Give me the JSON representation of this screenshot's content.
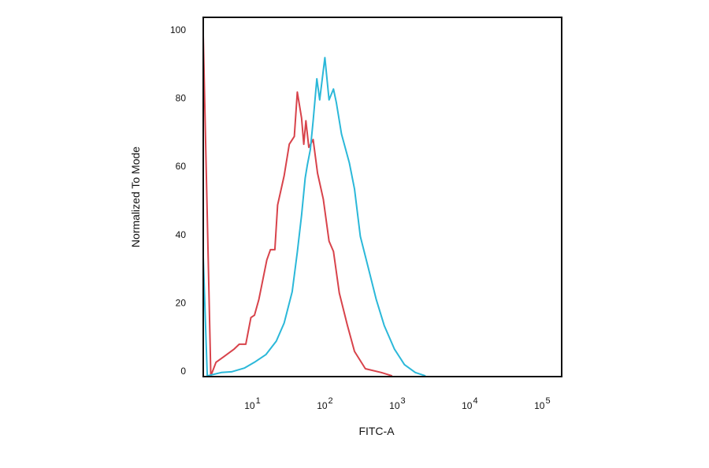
{
  "chart_data": {
    "type": "line",
    "title": "",
    "xlabel": "FITC-A",
    "ylabel": "Normalized To Mode",
    "xscale": "log",
    "xlim": [
      2.2,
      195000
    ],
    "ylim": [
      0,
      105
    ],
    "grid": false,
    "y_ticks": [
      0,
      20,
      40,
      60,
      80,
      100
    ],
    "x_ticks": [
      {
        "value": 10,
        "base": "10",
        "exp": "1"
      },
      {
        "value": 100,
        "base": "10",
        "exp": "2"
      },
      {
        "value": 1000,
        "base": "10",
        "exp": "3"
      },
      {
        "value": 10000,
        "base": "10",
        "exp": "4"
      },
      {
        "value": 100000,
        "base": "10",
        "exp": "5"
      }
    ],
    "series": [
      {
        "color": "#d8434b",
        "x": [
          2.2,
          2.8,
          3.3,
          4.2,
          5.9,
          6.9,
          8.5,
          10,
          11.2,
          12.9,
          16.6,
          18.6,
          21.4,
          23.4,
          28.8,
          33.9,
          39.8,
          43.7,
          50.1,
          53.7,
          57.5,
          63.1,
          72.4,
          83.2,
          100,
          120,
          138,
          166,
          214,
          269,
          380,
          631,
          891
        ],
        "y": [
          100,
          0.2,
          4.2,
          5.8,
          8.1,
          9.5,
          9.5,
          17.3,
          18,
          22.6,
          34.2,
          37.2,
          37.2,
          50.3,
          58.9,
          68.1,
          70.4,
          83.4,
          75.8,
          68.1,
          75,
          67.2,
          69.5,
          59.6,
          52,
          39.7,
          36.7,
          24.5,
          15.2,
          7.4,
          2.3,
          1.2,
          0.2
        ]
      },
      {
        "color": "#2bb8d9",
        "x": [
          2.2,
          2.5,
          3.9,
          5.4,
          8.1,
          11.2,
          16.2,
          22.4,
          28.8,
          37.2,
          43.7,
          50.1,
          56.2,
          60.3,
          66.1,
          72.4,
          81.3,
          89.1,
          105,
          120,
          138,
          151,
          178,
          229,
          269,
          324,
          417,
          537,
          692,
          955,
          1318,
          1862,
          2570
        ],
        "y": [
          35,
          0.2,
          1.2,
          1.4,
          2.5,
          4.2,
          6.5,
          10.4,
          15.7,
          24.9,
          36.5,
          47.3,
          58.2,
          62.1,
          66.5,
          75,
          87.3,
          81.1,
          93.5,
          81.1,
          84.3,
          80.4,
          71.1,
          62.6,
          55,
          41.1,
          31.9,
          22.6,
          15,
          8.1,
          3.5,
          1.2,
          0.2
        ]
      }
    ]
  }
}
